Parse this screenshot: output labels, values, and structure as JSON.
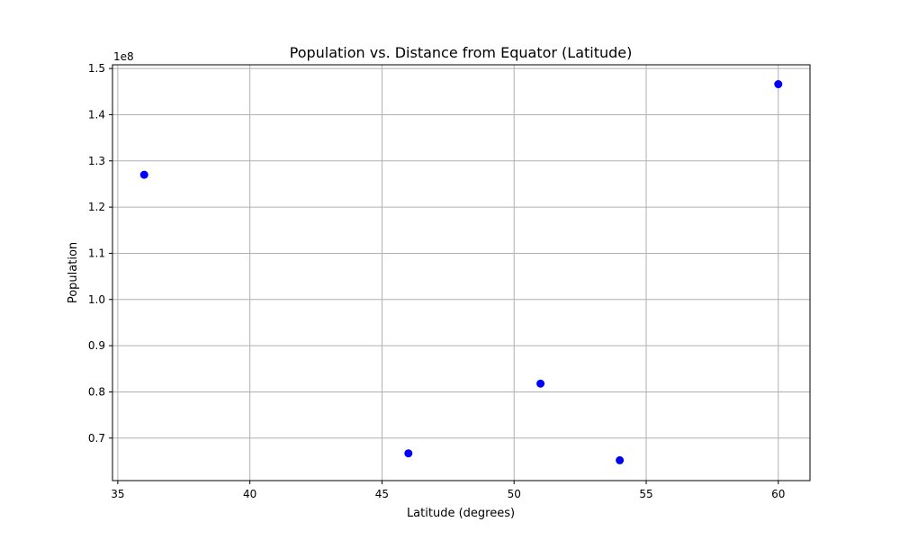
{
  "chart_data": {
    "type": "scatter",
    "title": "Population vs. Distance from Equator (Latitude)",
    "xlabel": "Latitude (degrees)",
    "ylabel": "Population",
    "y_offset_label": "1e8",
    "xlim": [
      34.8,
      61.2
    ],
    "ylim": [
      60800000,
      150800000
    ],
    "x_ticks": [
      35,
      40,
      45,
      50,
      55,
      60
    ],
    "x_tick_labels": [
      "35",
      "40",
      "45",
      "50",
      "55",
      "60"
    ],
    "y_ticks": [
      70000000,
      80000000,
      90000000,
      100000000,
      110000000,
      120000000,
      130000000,
      140000000,
      150000000
    ],
    "y_tick_labels": [
      "0.7",
      "0.8",
      "0.9",
      "1.0",
      "1.1",
      "1.2",
      "1.3",
      "1.4",
      "1.5"
    ],
    "grid": true,
    "marker_color": "#0000ff",
    "points": [
      {
        "x": 36,
        "y": 127000000
      },
      {
        "x": 46,
        "y": 66700000
      },
      {
        "x": 51,
        "y": 81800000
      },
      {
        "x": 54,
        "y": 65200000
      },
      {
        "x": 60,
        "y": 146600000
      }
    ]
  }
}
